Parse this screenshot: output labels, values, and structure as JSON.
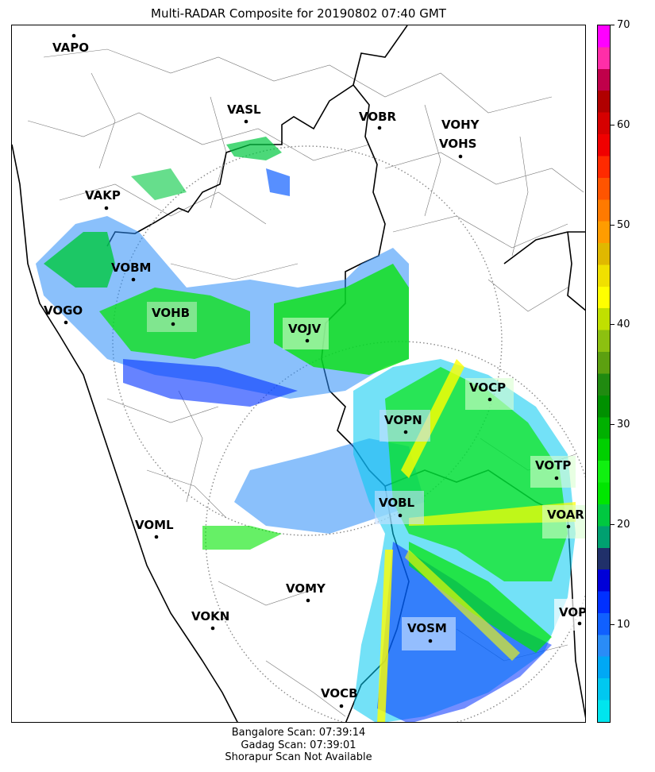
{
  "title": "Multi-RADAR Composite for 20190802 07:40 GMT",
  "colorbar": {
    "ticks": [
      "70",
      "60",
      "50",
      "40",
      "30",
      "20",
      "10"
    ],
    "colors": [
      "#00e5ee",
      "#00c8f0",
      "#00a8f5",
      "#2a8cf7",
      "#1060ff",
      "#0030ff",
      "#0000d8",
      "#20306a",
      "#00a070",
      "#00c840",
      "#00e600",
      "#10f010",
      "#00d000",
      "#00b000",
      "#009000",
      "#208a10",
      "#5ca010",
      "#8cc010",
      "#c0e000",
      "#ffff00",
      "#f0e000",
      "#e0b800",
      "#ff9c00",
      "#ff7a00",
      "#ff5400",
      "#ff2a00",
      "#f00000",
      "#d60000",
      "#b00000",
      "#c0004a",
      "#ff2ea8",
      "#ff00ff"
    ]
  },
  "stations": [
    {
      "code": "VAPO"
    },
    {
      "code": "VASL"
    },
    {
      "code": "VOBR"
    },
    {
      "code": "VOHY"
    },
    {
      "code": "VOHS"
    },
    {
      "code": "VAKP"
    },
    {
      "code": "VOBM"
    },
    {
      "code": "VOGO"
    },
    {
      "code": "VOHB"
    },
    {
      "code": "VOJV"
    },
    {
      "code": "VOCP"
    },
    {
      "code": "VOPN"
    },
    {
      "code": "VOTP"
    },
    {
      "code": "VOBL"
    },
    {
      "code": "VOAR"
    },
    {
      "code": "VOML"
    },
    {
      "code": "VOMY"
    },
    {
      "code": "VOKN"
    },
    {
      "code": "VOSM"
    },
    {
      "code": "VOPC"
    },
    {
      "code": "VOCB"
    }
  ],
  "footer": {
    "line1": "Bangalore Scan: 07:39:14",
    "line2": "Gadag Scan: 07:39:01",
    "line3": "Shorapur Scan Not Available"
  }
}
